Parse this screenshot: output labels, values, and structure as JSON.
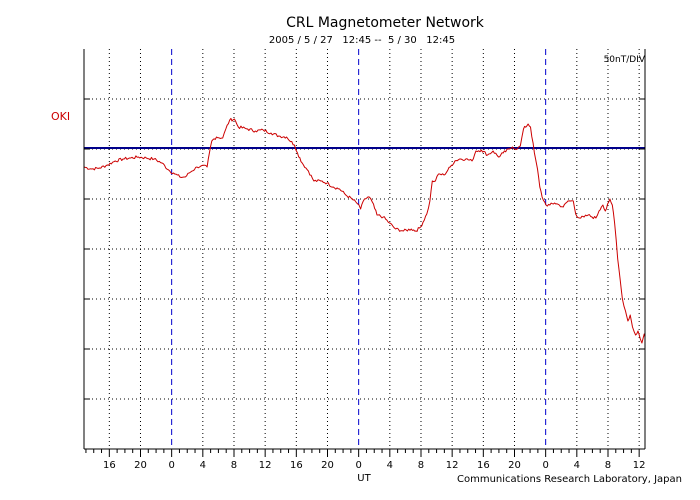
{
  "chart_data": {
    "type": "line",
    "title": "CRL Magnetometer Network",
    "subtitle": "2005 / 5 / 27   12:45 --  5 / 30   12:45",
    "xlabel": "UT",
    "scale_label": "50nT/DIV",
    "footer": "Communications Research Laboratory, Japan",
    "baseline_label": "OKI",
    "colors": {
      "trace": "#cc0000",
      "baseline": "#00008b",
      "day_marker": "#0000cc",
      "grid": "#000000",
      "baseline_label": "#cc0000"
    },
    "x_unit": "hours since 2005-05-27 12:45 UT",
    "xlim": [
      0,
      72
    ],
    "ylim": [
      0,
      400
    ],
    "y_div": 50,
    "baseline_value": 301,
    "day_boundaries": [
      11.25,
      35.25,
      59.25
    ],
    "x_ticks": [
      {
        "x": 3.25,
        "label": "16"
      },
      {
        "x": 7.25,
        "label": "20"
      },
      {
        "x": 11.25,
        "label": "0"
      },
      {
        "x": 15.25,
        "label": "4"
      },
      {
        "x": 19.25,
        "label": "8"
      },
      {
        "x": 23.25,
        "label": "12"
      },
      {
        "x": 27.25,
        "label": "16"
      },
      {
        "x": 31.25,
        "label": "20"
      },
      {
        "x": 35.25,
        "label": "0"
      },
      {
        "x": 39.25,
        "label": "4"
      },
      {
        "x": 43.25,
        "label": "8"
      },
      {
        "x": 47.25,
        "label": "12"
      },
      {
        "x": 51.25,
        "label": "16"
      },
      {
        "x": 55.25,
        "label": "20"
      },
      {
        "x": 59.25,
        "label": "0"
      },
      {
        "x": 63.25,
        "label": "4"
      },
      {
        "x": 67.25,
        "label": "8"
      },
      {
        "x": 71.25,
        "label": "12"
      }
    ],
    "series": [
      {
        "values": [
          [
            0,
            282
          ],
          [
            1,
            280
          ],
          [
            2,
            281
          ],
          [
            3,
            284
          ],
          [
            4,
            288
          ],
          [
            5,
            290
          ],
          [
            6,
            291
          ],
          [
            7,
            292
          ],
          [
            8,
            291
          ],
          [
            9,
            290
          ],
          [
            10,
            286
          ],
          [
            11,
            278
          ],
          [
            11.5,
            276
          ],
          [
            12.3,
            272
          ],
          [
            13,
            272
          ],
          [
            13.5,
            276
          ],
          [
            14.5,
            282
          ],
          [
            15,
            283
          ],
          [
            15.8,
            282
          ],
          [
            16.1,
            296
          ],
          [
            16.4,
            308
          ],
          [
            17,
            312
          ],
          [
            17.8,
            311
          ],
          [
            18.2,
            320
          ],
          [
            18.7,
            329
          ],
          [
            19.3,
            330
          ],
          [
            19.8,
            322
          ],
          [
            21,
            320
          ],
          [
            22,
            318
          ],
          [
            23,
            319
          ],
          [
            24,
            316
          ],
          [
            25,
            313
          ],
          [
            26,
            312
          ],
          [
            27,
            304
          ],
          [
            27.4,
            296
          ],
          [
            28,
            286
          ],
          [
            28.8,
            278
          ],
          [
            29.5,
            268
          ],
          [
            30.4,
            268
          ],
          [
            31.2,
            266
          ],
          [
            32,
            262
          ],
          [
            32.8,
            260
          ],
          [
            33.6,
            254
          ],
          [
            34.4,
            250
          ],
          [
            35,
            246
          ],
          [
            35.3,
            244
          ],
          [
            35.5,
            240
          ],
          [
            36,
            250
          ],
          [
            36.6,
            252
          ],
          [
            37,
            247
          ],
          [
            37.6,
            234
          ],
          [
            38.4,
            232
          ],
          [
            39.2,
            226
          ],
          [
            40,
            220
          ],
          [
            41,
            218
          ],
          [
            42,
            220
          ],
          [
            42.6,
            218
          ],
          [
            43.2,
            222
          ],
          [
            44,
            235
          ],
          [
            44.4,
            248
          ],
          [
            44.7,
            268
          ],
          [
            45.1,
            268
          ],
          [
            45.5,
            275
          ],
          [
            46.2,
            274
          ],
          [
            47,
            282
          ],
          [
            47.6,
            288
          ],
          [
            48.2,
            290
          ],
          [
            49,
            290
          ],
          [
            49.8,
            288
          ],
          [
            50.3,
            298
          ],
          [
            51,
            299
          ],
          [
            51.8,
            294
          ],
          [
            52.5,
            298
          ],
          [
            53.2,
            292
          ],
          [
            53.8,
            296
          ],
          [
            54.6,
            300
          ],
          [
            55,
            302
          ],
          [
            55.6,
            300
          ],
          [
            56,
            303
          ],
          [
            56.4,
            320
          ],
          [
            57,
            325
          ],
          [
            57.3,
            322
          ],
          [
            57.8,
            296
          ],
          [
            58.2,
            280
          ],
          [
            58.5,
            262
          ],
          [
            58.8,
            252
          ],
          [
            59.3,
            244
          ],
          [
            59.8,
            244
          ],
          [
            60.4,
            246
          ],
          [
            61,
            244
          ],
          [
            61.5,
            242
          ],
          [
            62.1,
            248
          ],
          [
            62.5,
            248
          ],
          [
            62.8,
            248
          ],
          [
            63.1,
            235
          ],
          [
            63.6,
            231
          ],
          [
            64.2,
            232
          ],
          [
            64.7,
            234
          ],
          [
            65.2,
            232
          ],
          [
            65.7,
            231
          ],
          [
            66.1,
            238
          ],
          [
            66.4,
            242
          ],
          [
            66.6,
            244
          ],
          [
            66.9,
            238
          ],
          [
            67.2,
            245
          ],
          [
            67.5,
            250
          ],
          [
            67.8,
            244
          ],
          [
            68.1,
            226
          ],
          [
            68.5,
            190
          ],
          [
            68.8,
            170
          ],
          [
            69.1,
            150
          ],
          [
            69.5,
            138
          ],
          [
            69.8,
            128
          ],
          [
            70.1,
            134
          ],
          [
            70.4,
            122
          ],
          [
            70.8,
            114
          ],
          [
            71.1,
            118
          ],
          [
            71.4,
            110
          ],
          [
            71.6,
            106
          ],
          [
            71.9,
            115
          ],
          [
            72,
            112
          ]
        ]
      }
    ]
  }
}
